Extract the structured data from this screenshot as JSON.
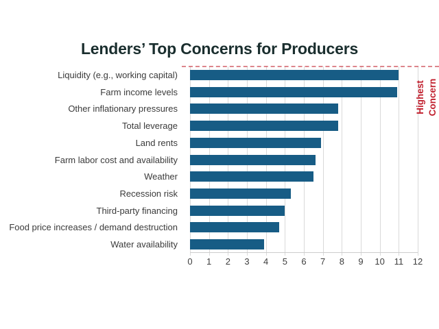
{
  "title": {
    "text": "Lenders’ Top Concerns for Producers",
    "color": "#1a2e2e"
  },
  "side_annotation": {
    "text": "Highest\nConcern",
    "color": "#c1202e"
  },
  "colors": {
    "bar": "#175c85",
    "grid": "#d9d9d9",
    "axis": "#cccccc",
    "accent_red": "#c1202e",
    "label_text": "#3a3a3a"
  },
  "chart_data": {
    "type": "bar",
    "orientation": "horizontal",
    "title": "Lenders’ Top Concerns for Producers",
    "xlabel": "",
    "ylabel": "",
    "xlim": [
      0,
      12
    ],
    "xticks": [
      0,
      1,
      2,
      3,
      4,
      5,
      6,
      7,
      8,
      9,
      10,
      11,
      12
    ],
    "grid": true,
    "legend": false,
    "annotation": "Highest Concern",
    "categories": [
      "Liquidity (e.g., working capital)",
      "Farm income levels",
      "Other inflationary pressures",
      "Total leverage",
      "Land rents",
      "Farm labor cost and availability",
      "Weather",
      "Recession risk",
      "Third-party financing",
      "Food price increases / demand destruction",
      "Water availability"
    ],
    "values": [
      11,
      10.9,
      7.8,
      7.8,
      6.9,
      6.6,
      6.5,
      5.3,
      5.0,
      4.7,
      3.9
    ]
  }
}
